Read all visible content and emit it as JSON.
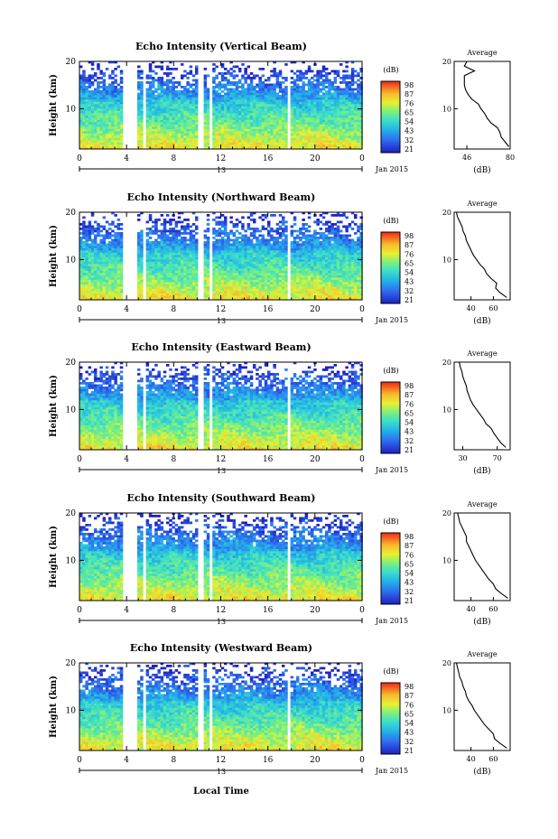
{
  "common": {
    "time_ticks": [
      "0",
      "4",
      "8",
      "12",
      "16",
      "20",
      "0"
    ],
    "date_mark": "13",
    "date_label": "Jan 2015",
    "x_label": "Local Time",
    "y_label": "Height (km)",
    "height_ticks": [
      "20",
      "10"
    ],
    "colorbar_unit": "(dB)",
    "colorbar_levels": [
      "98",
      "87",
      "76",
      "65",
      "54",
      "43",
      "32",
      "21"
    ],
    "avg_title": "Average",
    "avg_xlabel": "(dB)"
  },
  "chart_data": [
    {
      "type": "heatmap",
      "title": "Echo Intensity (Vertical Beam)",
      "x_unit": "Local Time (h)",
      "x_range": [
        0,
        24
      ],
      "y_unit": "Height (km)",
      "y_range": [
        1.5,
        20
      ],
      "value_unit": "dB",
      "value_range": [
        21,
        98
      ],
      "colorbar_ticks": [
        "98",
        "87",
        "76",
        "65",
        "54",
        "43",
        "32",
        "21"
      ],
      "data_gaps_hours": [
        [
          3.8,
          5.0
        ],
        [
          5.4,
          5.6
        ],
        [
          10.1,
          10.6
        ],
        [
          11.0,
          11.4
        ],
        [
          17.6,
          17.8
        ]
      ],
      "average_profile": {
        "title": "Average",
        "xlabel": "(dB)",
        "x_ticks": [
          "46",
          "80"
        ],
        "x_range": [
          36,
          80
        ],
        "y_ticks": [
          "20",
          "10"
        ],
        "heights_km": [
          2,
          3,
          4,
          5,
          6,
          7,
          8,
          9,
          10,
          11,
          12,
          13,
          14,
          15,
          16,
          17,
          18,
          19,
          20
        ],
        "values_db": [
          79,
          76,
          73,
          72,
          70,
          65,
          62,
          60,
          57,
          55,
          50,
          47,
          45,
          44,
          44,
          44,
          52,
          44,
          46
        ]
      }
    },
    {
      "type": "heatmap",
      "title": "Echo Intensity (Northward Beam)",
      "x_unit": "Local Time (h)",
      "x_range": [
        0,
        24
      ],
      "y_unit": "Height (km)",
      "y_range": [
        1.5,
        20
      ],
      "value_unit": "dB",
      "value_range": [
        21,
        98
      ],
      "colorbar_ticks": [
        "98",
        "87",
        "76",
        "65",
        "54",
        "43",
        "32",
        "21"
      ],
      "data_gaps_hours": [
        [
          3.8,
          5.0
        ],
        [
          5.4,
          5.6
        ],
        [
          10.1,
          10.6
        ],
        [
          11.0,
          11.4
        ],
        [
          17.6,
          17.8
        ]
      ],
      "average_profile": {
        "title": "Average",
        "xlabel": "(dB)",
        "x_ticks": [
          "40",
          "60"
        ],
        "x_range": [
          25,
          75
        ],
        "y_ticks": [
          "20",
          "10"
        ],
        "heights_km": [
          2,
          3,
          4,
          5,
          6,
          7,
          8,
          9,
          10,
          11,
          12,
          13,
          14,
          15,
          16,
          17,
          18,
          19,
          20
        ],
        "values_db": [
          72,
          66,
          62,
          63,
          58,
          54,
          52,
          48,
          45,
          42,
          40,
          38,
          36,
          35,
          33,
          32,
          30,
          28,
          27
        ]
      }
    },
    {
      "type": "heatmap",
      "title": "Echo Intensity (Eastward Beam)",
      "x_unit": "Local Time (h)",
      "x_range": [
        0,
        24
      ],
      "y_unit": "Height (km)",
      "y_range": [
        1.5,
        20
      ],
      "value_unit": "dB",
      "value_range": [
        21,
        98
      ],
      "colorbar_ticks": [
        "98",
        "87",
        "76",
        "65",
        "54",
        "43",
        "32",
        "21"
      ],
      "data_gaps_hours": [
        [
          3.8,
          5.0
        ],
        [
          5.4,
          5.6
        ],
        [
          10.1,
          10.6
        ],
        [
          11.0,
          11.4
        ],
        [
          17.6,
          17.8
        ]
      ],
      "average_profile": {
        "title": "Average",
        "xlabel": "(dB)",
        "x_ticks": [
          "30",
          "70"
        ],
        "x_range": [
          20,
          85
        ],
        "y_ticks": [
          "20",
          "10"
        ],
        "heights_km": [
          2,
          3,
          4,
          5,
          6,
          7,
          8,
          9,
          10,
          11,
          12,
          13,
          14,
          15,
          16,
          17,
          18,
          19,
          20
        ],
        "values_db": [
          80,
          74,
          70,
          66,
          63,
          57,
          54,
          50,
          46,
          42,
          39,
          37,
          35,
          34,
          32,
          30,
          29,
          27,
          26
        ]
      }
    },
    {
      "type": "heatmap",
      "title": "Echo Intensity (Southward Beam)",
      "x_unit": "Local Time (h)",
      "x_range": [
        0,
        24
      ],
      "y_unit": "Height (km)",
      "y_range": [
        1.5,
        20
      ],
      "value_unit": "dB",
      "value_range": [
        21,
        98
      ],
      "colorbar_ticks": [
        "98",
        "87",
        "76",
        "65",
        "54",
        "43",
        "32",
        "21"
      ],
      "data_gaps_hours": [
        [
          3.8,
          5.0
        ],
        [
          5.4,
          5.6
        ],
        [
          10.1,
          10.6
        ],
        [
          11.0,
          11.4
        ],
        [
          17.6,
          17.8
        ]
      ],
      "average_profile": {
        "title": "Average",
        "xlabel": "(dB)",
        "x_ticks": [
          "40",
          "60"
        ],
        "x_range": [
          25,
          75
        ],
        "y_ticks": [
          "20",
          "10"
        ],
        "heights_km": [
          2,
          3,
          4,
          5,
          6,
          7,
          8,
          9,
          10,
          11,
          12,
          13,
          14,
          15,
          16,
          17,
          18,
          19,
          20
        ],
        "values_db": [
          73,
          67,
          62,
          60,
          56,
          53,
          50,
          47,
          44,
          42,
          40,
          38,
          36,
          36,
          34,
          32,
          30,
          29,
          28
        ]
      }
    },
    {
      "type": "heatmap",
      "title": "Echo Intensity (Westward Beam)",
      "x_unit": "Local Time (h)",
      "x_range": [
        0,
        24
      ],
      "y_unit": "Height (km)",
      "y_range": [
        1.5,
        20
      ],
      "value_unit": "dB",
      "value_range": [
        21,
        98
      ],
      "colorbar_ticks": [
        "98",
        "87",
        "76",
        "65",
        "54",
        "43",
        "32",
        "21"
      ],
      "data_gaps_hours": [
        [
          3.8,
          5.0
        ],
        [
          5.4,
          5.6
        ],
        [
          10.1,
          10.6
        ],
        [
          11.0,
          11.4
        ],
        [
          17.6,
          17.8
        ]
      ],
      "average_profile": {
        "title": "Average",
        "xlabel": "(dB)",
        "x_ticks": [
          "40",
          "60"
        ],
        "x_range": [
          25,
          75
        ],
        "y_ticks": [
          "20",
          "10"
        ],
        "heights_km": [
          2,
          3,
          4,
          5,
          6,
          7,
          8,
          9,
          10,
          11,
          12,
          13,
          14,
          15,
          16,
          17,
          18,
          19,
          20
        ],
        "values_db": [
          72,
          66,
          61,
          60,
          56,
          52,
          49,
          46,
          43,
          41,
          38,
          36,
          35,
          33,
          32,
          30,
          29,
          28,
          27
        ]
      }
    }
  ]
}
